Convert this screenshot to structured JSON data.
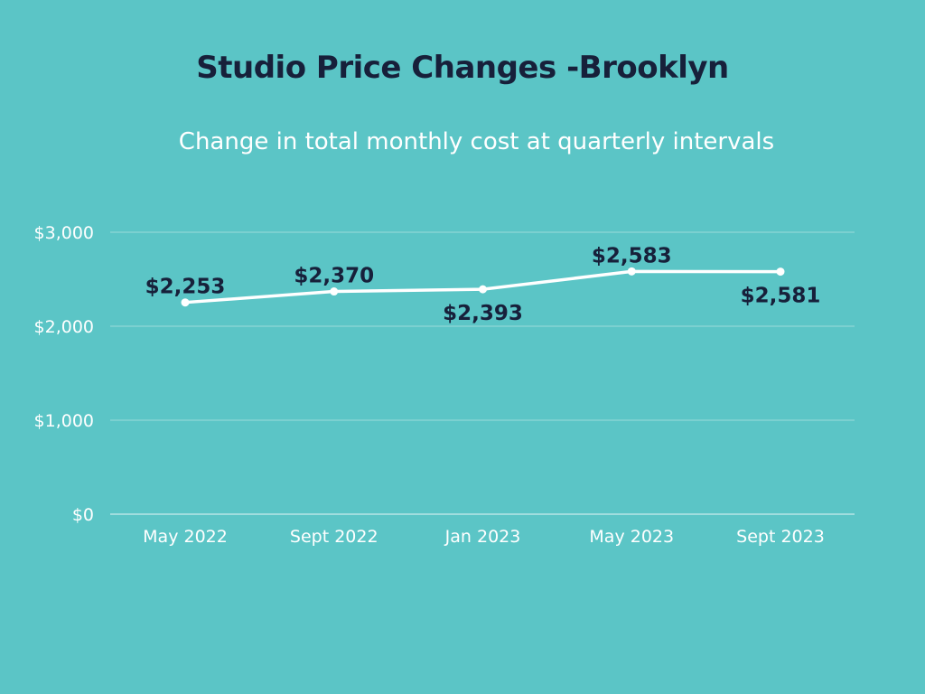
{
  "colors": {
    "background": "#5bc5c6",
    "title": "#17203a",
    "text": "#ffffff",
    "line": "#ffffff",
    "gridline": "#8ed6d6",
    "data_label": "#17203a"
  },
  "chart_data": {
    "type": "line",
    "title": "Studio Price Changes -Brooklyn",
    "subtitle": "Change in total monthly cost at quarterly intervals",
    "xlabel": "",
    "ylabel": "",
    "categories": [
      "May 2022",
      "Sept 2022",
      "Jan 2023",
      "May 2023",
      "Sept 2023"
    ],
    "series": [
      {
        "values": [
          2253,
          2370,
          2393,
          2583,
          2581
        ]
      }
    ],
    "data_labels": [
      "$2,253",
      "$2,370",
      "$2,393",
      "$2,583",
      "$2,581"
    ],
    "data_label_positions": [
      "above",
      "above",
      "below",
      "above",
      "below"
    ],
    "y_ticks": [
      0,
      1000,
      2000,
      3000
    ],
    "y_tick_labels": [
      "$0",
      "$1,000",
      "$2,000",
      "$3,000"
    ],
    "ylim": [
      0,
      3000
    ],
    "grid": true,
    "legend": "none"
  }
}
